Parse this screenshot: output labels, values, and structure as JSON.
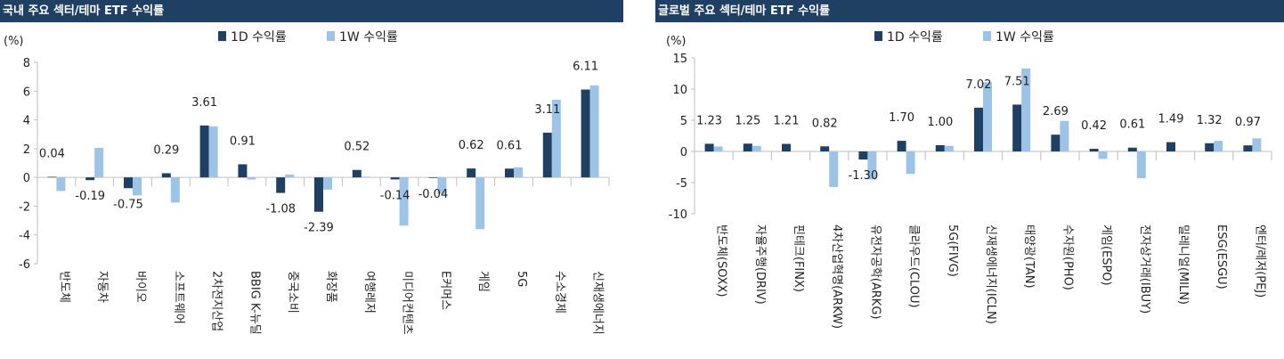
{
  "colors": {
    "title_bg": "#1f3f63",
    "series_1d": "#1f3f63",
    "series_1w": "#9dc3e6",
    "axis": "#bfbfbf"
  },
  "chart_data": [
    {
      "type": "bar",
      "title": "국내 주요 섹터/테마 ETF 수익률",
      "unit": "(%)",
      "categories": [
        "반도체",
        "자동차",
        "바이오",
        "소프트웨어",
        "2차전지산업",
        "BBIG K-뉴딜",
        "중국소비",
        "화장품",
        "여행레저",
        "미디어컨텐츠",
        "E커머스",
        "게임",
        "5G",
        "수소경제",
        "신재생에너지"
      ],
      "series": [
        {
          "name": "1D 수익률",
          "values": [
            0.04,
            -0.19,
            -0.75,
            0.29,
            3.61,
            0.91,
            -1.08,
            -2.39,
            0.52,
            -0.14,
            -0.04,
            0.62,
            0.61,
            3.11,
            6.11
          ]
        },
        {
          "name": "1W 수익률",
          "values": [
            -0.95,
            2.05,
            -1.25,
            -1.75,
            3.55,
            -0.15,
            0.2,
            -0.85,
            0.05,
            -3.35,
            -1.15,
            -3.6,
            0.7,
            5.4,
            6.4
          ]
        }
      ],
      "data_labels": [
        "0.04",
        "-0.19",
        "-0.75",
        "0.29",
        "3.61",
        "0.91",
        "-1.08",
        "-2.39",
        "0.52",
        "-0.14",
        "-0.04",
        "0.62",
        "0.61",
        "3.11",
        "6.11"
      ],
      "ylim": [
        -6,
        8
      ],
      "yticks": [
        -6,
        -4,
        -2,
        0,
        2,
        4,
        6,
        8
      ],
      "legend": "top-center",
      "grid": false
    },
    {
      "type": "bar",
      "title": "글로벌 주요 섹터/테마 ETF 수익률",
      "unit": "(%)",
      "categories": [
        "반도체(SOXX)",
        "자율주행(DRIV)",
        "핀테크(FINX)",
        "4차산업혁명(ARKW)",
        "유전자공학(ARKG)",
        "클라우드(CLOU)",
        "5G(FIVG)",
        "신재생에너지(ICLN)",
        "태양광(TAN)",
        "수자원(PHO)",
        "게임(ESPO)",
        "전자상거래(IBUY)",
        "밀레니얼(MILN)",
        "ESG(ESGU)",
        "엔터/레저(PEJ)"
      ],
      "series": [
        {
          "name": "1D 수익률",
          "values": [
            1.23,
            1.25,
            1.21,
            0.82,
            -1.3,
            1.7,
            1.0,
            7.02,
            7.51,
            2.69,
            0.42,
            0.61,
            1.49,
            1.32,
            0.97
          ]
        },
        {
          "name": "1W 수익률",
          "values": [
            0.8,
            0.9,
            0.0,
            -5.7,
            -4.5,
            -3.6,
            0.9,
            11.1,
            13.3,
            4.9,
            -1.2,
            -4.3,
            0.0,
            1.7,
            2.1
          ]
        }
      ],
      "data_labels": [
        "1.23",
        "1.25",
        "1.21",
        "0.82",
        "-1.30",
        "1.70",
        "1.00",
        "7.02",
        "7.51",
        "2.69",
        "0.42",
        "0.61",
        "1.49",
        "1.32",
        "0.97"
      ],
      "ylim": [
        -10,
        15
      ],
      "yticks": [
        -10,
        -5,
        0,
        5,
        10,
        15
      ],
      "legend": "top-center",
      "grid": false
    }
  ]
}
